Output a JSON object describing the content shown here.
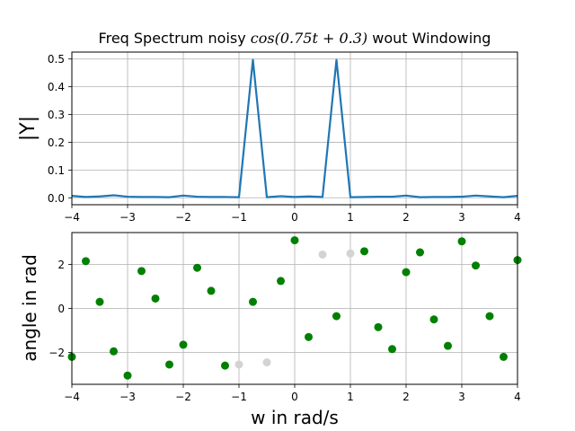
{
  "chart_data": [
    {
      "type": "line",
      "title": "Freq Spectrum noisy cos(0.75t + 0.3) wout Windowing",
      "title_parts": {
        "before": "Freq Spectrum noisy ",
        "math": "cos(0.75t + 0.3)",
        "after": " wout Windowing"
      },
      "xlabel": "",
      "ylabel": "|Y|",
      "xlim": [
        -4,
        4
      ],
      "ylim": [
        -0.025,
        0.525
      ],
      "xticks": [
        -4,
        -3,
        -2,
        -1,
        0,
        1,
        2,
        3,
        4
      ],
      "yticks": [
        0.0,
        0.1,
        0.2,
        0.3,
        0.4,
        0.5
      ],
      "ytick_labels": [
        "0.0",
        "0.1",
        "0.2",
        "0.3",
        "0.4",
        "0.5"
      ],
      "grid": true,
      "line_color": "#1f77b4",
      "x": [
        -4.0,
        -3.75,
        -3.5,
        -3.25,
        -3.0,
        -2.75,
        -2.5,
        -2.25,
        -2.0,
        -1.75,
        -1.5,
        -1.25,
        -1.0,
        -0.75,
        -0.5,
        -0.25,
        0.0,
        0.25,
        0.5,
        0.75,
        1.0,
        1.25,
        1.5,
        1.75,
        2.0,
        2.25,
        2.5,
        2.75,
        3.0,
        3.25,
        3.5,
        3.75,
        4.0
      ],
      "values": [
        0.007,
        0.003,
        0.005,
        0.009,
        0.004,
        0.003,
        0.003,
        0.002,
        0.008,
        0.004,
        0.003,
        0.003,
        0.002,
        0.497,
        0.002,
        0.006,
        0.003,
        0.005,
        0.003,
        0.497,
        0.002,
        0.003,
        0.004,
        0.004,
        0.008,
        0.002,
        0.003,
        0.003,
        0.004,
        0.008,
        0.005,
        0.002,
        0.007
      ]
    },
    {
      "type": "scatter",
      "xlabel": "w in rad/s",
      "ylabel": "angle in rad",
      "xlim": [
        -4,
        4
      ],
      "ylim": [
        -3.45,
        3.45
      ],
      "xticks": [
        -4,
        -3,
        -2,
        -1,
        0,
        1,
        2,
        3,
        4
      ],
      "yticks": [
        -2,
        0,
        2
      ],
      "grid": true,
      "series": [
        {
          "color": "#008000",
          "x": [
            -4.0,
            -3.75,
            -3.5,
            -3.25,
            -3.0,
            -2.75,
            -2.5,
            -2.25,
            -2.0,
            -1.75,
            -1.5,
            -1.25,
            -0.75,
            -0.25,
            0.0,
            0.25,
            0.75,
            1.25,
            1.5,
            1.75,
            2.0,
            2.25,
            2.5,
            2.75,
            3.0,
            3.25,
            3.5,
            3.75,
            4.0
          ],
          "values": [
            -2.2,
            2.15,
            0.3,
            -1.95,
            -3.05,
            1.7,
            0.45,
            -2.55,
            -1.65,
            1.85,
            0.8,
            -2.6,
            0.3,
            1.25,
            3.1,
            -1.3,
            -0.35,
            2.6,
            -0.85,
            -1.85,
            1.65,
            2.55,
            -0.5,
            -1.7,
            3.05,
            1.95,
            -0.35,
            -2.2,
            2.2
          ]
        },
        {
          "color": "#d3d3d3",
          "x": [
            -1.0,
            -0.5,
            0.5,
            1.0
          ],
          "values": [
            -2.55,
            -2.45,
            2.45,
            2.5
          ]
        }
      ]
    }
  ]
}
